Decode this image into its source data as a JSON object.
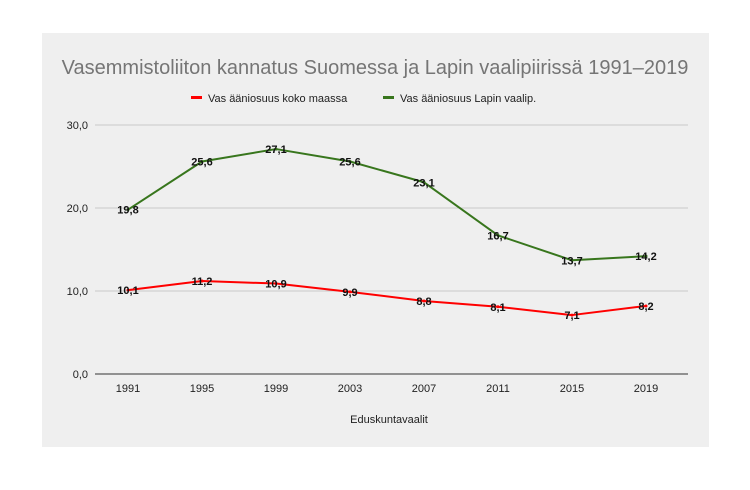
{
  "chart_data": {
    "type": "line",
    "title": "Vasemmistoliiton kannatus Suomessa ja Lapin vaalipiirissä 1991–2019",
    "xlabel": "Eduskuntavaalit",
    "ylabel": "",
    "categories": [
      "1991",
      "1995",
      "1999",
      "2003",
      "2007",
      "2011",
      "2015",
      "2019"
    ],
    "ylim": [
      0,
      30
    ],
    "yticks": [
      "0,0",
      "10,0",
      "20,0",
      "30,0"
    ],
    "grid": true,
    "legend_position": "top",
    "series": [
      {
        "name": "Vas ääniosuus koko maassa",
        "color": "#ff0000",
        "values": [
          10.1,
          11.2,
          10.9,
          9.9,
          8.8,
          8.1,
          7.1,
          8.2
        ],
        "labels": [
          "10,1",
          "11,2",
          "10,9",
          "9,9",
          "8,8",
          "8,1",
          "7,1",
          "8,2"
        ]
      },
      {
        "name": "Vas ääniosuus Lapin vaalip.",
        "color": "#38761d",
        "values": [
          19.8,
          25.6,
          27.1,
          25.6,
          23.1,
          16.7,
          13.7,
          14.2
        ],
        "labels": [
          "19,8",
          "25,6",
          "27,1",
          "25,6",
          "23,1",
          "16,7",
          "13,7",
          "14,2"
        ]
      }
    ]
  }
}
